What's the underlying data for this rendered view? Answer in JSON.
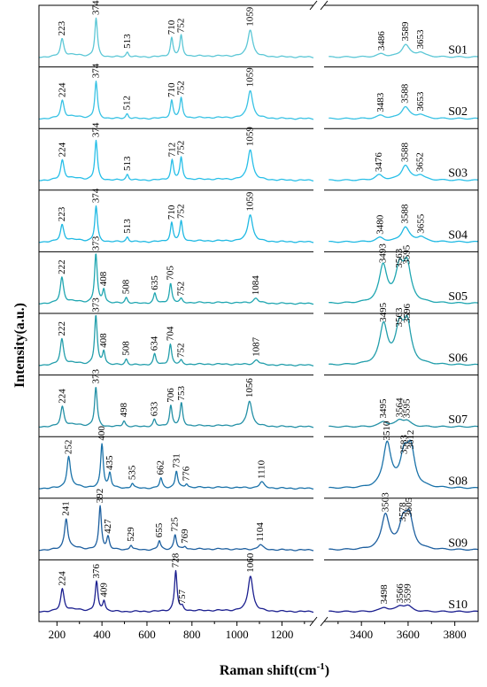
{
  "chart_data": {
    "type": "line",
    "xlabel": "Raman shift(cm",
    "xlabel_sup": "-1",
    "xlabel_close": ")",
    "ylabel": "Intensity(a.u.)",
    "x_break": [
      1340,
      3240
    ],
    "xlim_left": [
      120,
      1340
    ],
    "xlim_right": [
      3240,
      3900
    ],
    "xticks_left": [
      "200",
      "400",
      "600",
      "800",
      "1000",
      "1200"
    ],
    "xticks_right": [
      "3400",
      "3600",
      "3800"
    ],
    "minor_ticks_left": [
      300,
      500,
      700,
      900,
      1100,
      1300
    ],
    "minor_ticks_right": [
      3300,
      3500,
      3700
    ],
    "grid": false,
    "legend": "none",
    "series": [
      {
        "name": "S01",
        "color": "#5cc7d6",
        "peaks": [
          [
            223,
            0.36
          ],
          [
            374,
            0.78
          ],
          [
            513,
            0.1
          ],
          [
            710,
            0.38
          ],
          [
            752,
            0.42
          ],
          [
            1059,
            0.55
          ],
          [
            3486,
            0.06
          ],
          [
            3589,
            0.25
          ],
          [
            3653,
            0.09
          ]
        ],
        "labels": [
          "223",
          "374",
          "513",
          "710",
          "752",
          "1059",
          "3486",
          "3589",
          "3653"
        ]
      },
      {
        "name": "S02",
        "color": "#38c2e4",
        "peaks": [
          [
            224,
            0.36
          ],
          [
            374,
            0.75
          ],
          [
            512,
            0.1
          ],
          [
            710,
            0.36
          ],
          [
            752,
            0.4
          ],
          [
            1059,
            0.57
          ],
          [
            3483,
            0.06
          ],
          [
            3588,
            0.24
          ],
          [
            3653,
            0.08
          ]
        ],
        "labels": [
          "224",
          "374",
          "512",
          "710",
          "752",
          "1059",
          "3483",
          "3588",
          "3653"
        ]
      },
      {
        "name": "S03",
        "color": "#28bfe8",
        "peaks": [
          [
            224,
            0.4
          ],
          [
            374,
            0.8
          ],
          [
            513,
            0.12
          ],
          [
            712,
            0.4
          ],
          [
            752,
            0.44
          ],
          [
            1059,
            0.62
          ],
          [
            3476,
            0.1
          ],
          [
            3588,
            0.3
          ],
          [
            3652,
            0.1
          ]
        ],
        "labels": [
          "224",
          "374",
          "513",
          "712",
          "752",
          "1059",
          "3476",
          "3588",
          "3652"
        ]
      },
      {
        "name": "S04",
        "color": "#1fb9e3",
        "peaks": [
          [
            223,
            0.34
          ],
          [
            374,
            0.72
          ],
          [
            513,
            0.1
          ],
          [
            710,
            0.38
          ],
          [
            752,
            0.4
          ],
          [
            1059,
            0.55
          ],
          [
            3480,
            0.08
          ],
          [
            3588,
            0.3
          ],
          [
            3655,
            0.1
          ]
        ],
        "labels": [
          "223",
          "374",
          "513",
          "710",
          "752",
          "1059",
          "3480",
          "3588",
          "3655"
        ]
      },
      {
        "name": "S05",
        "color": "#1fa6b1",
        "peaks": [
          [
            222,
            0.52
          ],
          [
            373,
            1.0
          ],
          [
            408,
            0.28
          ],
          [
            508,
            0.12
          ],
          [
            635,
            0.2
          ],
          [
            705,
            0.4
          ],
          [
            752,
            0.08
          ],
          [
            1084,
            0.1
          ],
          [
            3493,
            0.75
          ],
          [
            3563,
            0.65
          ],
          [
            3595,
            0.72
          ]
        ],
        "labels": [
          "222",
          "373",
          "408",
          "508",
          "635",
          "705",
          "752",
          "1084",
          "3493",
          "3563",
          "3595"
        ]
      },
      {
        "name": "S06",
        "color": "#229eab",
        "peaks": [
          [
            222,
            0.52
          ],
          [
            373,
            1.0
          ],
          [
            408,
            0.28
          ],
          [
            508,
            0.12
          ],
          [
            634,
            0.22
          ],
          [
            704,
            0.42
          ],
          [
            752,
            0.08
          ],
          [
            1087,
            0.1
          ],
          [
            3495,
            0.8
          ],
          [
            3563,
            0.7
          ],
          [
            3596,
            0.78
          ]
        ],
        "labels": [
          "222",
          "373",
          "408",
          "508",
          "634",
          "704",
          "752",
          "1087",
          "3495",
          "3563",
          "3596"
        ]
      },
      {
        "name": "S07",
        "color": "#2390a6",
        "peaks": [
          [
            224,
            0.4
          ],
          [
            373,
            0.8
          ],
          [
            498,
            0.12
          ],
          [
            633,
            0.14
          ],
          [
            706,
            0.42
          ],
          [
            753,
            0.46
          ],
          [
            1056,
            0.52
          ],
          [
            3495,
            0.1
          ],
          [
            3564,
            0.12
          ],
          [
            3595,
            0.1
          ]
        ],
        "labels": [
          "224",
          "373",
          "498",
          "633",
          "706",
          "753",
          "1056",
          "3495",
          "3564",
          "3595"
        ]
      },
      {
        "name": "S08",
        "color": "#1a72a9",
        "peaks": [
          [
            252,
            0.62
          ],
          [
            400,
            0.9
          ],
          [
            435,
            0.3
          ],
          [
            535,
            0.1
          ],
          [
            662,
            0.2
          ],
          [
            731,
            0.34
          ],
          [
            776,
            0.08
          ],
          [
            1110,
            0.12
          ],
          [
            3510,
            0.9
          ],
          [
            3583,
            0.62
          ],
          [
            3612,
            0.72
          ]
        ],
        "labels": [
          "252",
          "400",
          "435",
          "535",
          "662",
          "731",
          "776",
          "1110",
          "3510",
          "3583",
          "3612"
        ]
      },
      {
        "name": "S09",
        "color": "#1d5f9f",
        "peaks": [
          [
            241,
            0.62
          ],
          [
            392,
            0.88
          ],
          [
            427,
            0.26
          ],
          [
            529,
            0.1
          ],
          [
            655,
            0.18
          ],
          [
            725,
            0.3
          ],
          [
            769,
            0.06
          ],
          [
            1104,
            0.1
          ],
          [
            3503,
            0.7
          ],
          [
            3578,
            0.5
          ],
          [
            3605,
            0.6
          ]
        ],
        "labels": [
          "241",
          "392",
          "427",
          "529",
          "655",
          "725",
          "769",
          "1104",
          "3503",
          "3578",
          "3605"
        ]
      },
      {
        "name": "S10",
        "color": "#1b1f8f",
        "peaks": [
          [
            224,
            0.45
          ],
          [
            376,
            0.6
          ],
          [
            409,
            0.22
          ],
          [
            728,
            0.82
          ],
          [
            757,
            0.08
          ],
          [
            1060,
            0.72
          ],
          [
            3498,
            0.08
          ],
          [
            3566,
            0.1
          ],
          [
            3599,
            0.1
          ]
        ],
        "labels": [
          "224",
          "376",
          "409",
          "728",
          "757",
          "1060",
          "3498",
          "3566",
          "3599"
        ]
      }
    ]
  }
}
